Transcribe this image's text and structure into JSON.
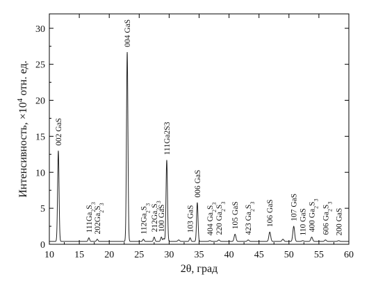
{
  "chart_data": {
    "type": "line",
    "title": "",
    "xlabel": "2θ, град",
    "ylabel": "Интенсивность, ×10⁴ отн. ед.",
    "ylabel_parts": {
      "before": "Интенсивность, ×10",
      "exp": "4",
      "after": " отн. ед."
    },
    "xlim": [
      10,
      60
    ],
    "ylim": [
      0,
      32
    ],
    "xticks": [
      10,
      15,
      20,
      25,
      30,
      35,
      40,
      45,
      50,
      55,
      60
    ],
    "yticks": [
      0,
      5,
      10,
      15,
      20,
      25,
      30
    ],
    "grid": false,
    "legend": "none",
    "colors": {
      "line": "#222222",
      "axes": "#000000"
    },
    "baseline": 0.4,
    "peaks": [
      {
        "x": 11.5,
        "y": 13.0,
        "w": 0.12
      },
      {
        "x": 16.6,
        "y": 0.9,
        "w": 0.12
      },
      {
        "x": 18.0,
        "y": 0.7,
        "w": 0.12
      },
      {
        "x": 23.0,
        "y": 26.7,
        "w": 0.12
      },
      {
        "x": 25.7,
        "y": 0.7,
        "w": 0.12
      },
      {
        "x": 27.5,
        "y": 1.0,
        "w": 0.12
      },
      {
        "x": 28.7,
        "y": 1.0,
        "w": 0.12
      },
      {
        "x": 29.1,
        "y": 0.8,
        "w": 0.12
      },
      {
        "x": 29.6,
        "y": 11.7,
        "w": 0.12
      },
      {
        "x": 31.6,
        "y": 0.6,
        "w": 0.15
      },
      {
        "x": 33.5,
        "y": 0.9,
        "w": 0.12
      },
      {
        "x": 34.7,
        "y": 5.8,
        "w": 0.12
      },
      {
        "x": 36.8,
        "y": 0.5,
        "w": 0.15
      },
      {
        "x": 38.3,
        "y": 0.6,
        "w": 0.15
      },
      {
        "x": 41.0,
        "y": 1.4,
        "w": 0.15
      },
      {
        "x": 43.2,
        "y": 0.6,
        "w": 0.15
      },
      {
        "x": 46.8,
        "y": 1.7,
        "w": 0.15
      },
      {
        "x": 49.0,
        "y": 0.7,
        "w": 0.15
      },
      {
        "x": 50.8,
        "y": 2.5,
        "w": 0.15
      },
      {
        "x": 52.3,
        "y": 0.5,
        "w": 0.15
      },
      {
        "x": 53.8,
        "y": 1.0,
        "w": 0.15
      },
      {
        "x": 56.1,
        "y": 0.6,
        "w": 0.15
      },
      {
        "x": 58.3,
        "y": 0.5,
        "w": 0.15
      }
    ],
    "annotations": [
      {
        "x": 11.5,
        "y": 13.7,
        "parts": [
          [
            "002 GaS",
            0
          ]
        ]
      },
      {
        "x": 16.6,
        "y": 1.6,
        "parts": [
          [
            "111Ga",
            0
          ],
          [
            "2",
            1
          ],
          [
            "S",
            0
          ],
          [
            "3",
            1
          ]
        ]
      },
      {
        "x": 18.0,
        "y": 1.4,
        "parts": [
          [
            "202Ga",
            0
          ],
          [
            "2",
            1
          ],
          [
            "S",
            0
          ],
          [
            "3",
            1
          ]
        ]
      },
      {
        "x": 23.0,
        "y": 27.4,
        "parts": [
          [
            "004 GaS",
            0
          ]
        ]
      },
      {
        "x": 25.7,
        "y": 1.4,
        "parts": [
          [
            "112Ga",
            0
          ],
          [
            "2",
            1
          ],
          [
            "S",
            0
          ],
          [
            "3",
            1
          ]
        ]
      },
      {
        "x": 27.5,
        "y": 1.7,
        "parts": [
          [
            "212Ga",
            0
          ],
          [
            "2",
            1
          ],
          [
            "S",
            0
          ],
          [
            "3",
            1
          ]
        ]
      },
      {
        "x": 28.7,
        "y": 1.7,
        "parts": [
          [
            "100 GaS",
            0
          ]
        ]
      },
      {
        "x": 29.6,
        "y": 12.4,
        "parts": [
          [
            "111Ga2S3",
            0
          ]
        ]
      },
      {
        "x": 33.5,
        "y": 1.6,
        "parts": [
          [
            "103 GaS",
            0
          ]
        ]
      },
      {
        "x": 34.7,
        "y": 6.5,
        "parts": [
          [
            "006 GaS",
            0
          ]
        ]
      },
      {
        "x": 36.8,
        "y": 1.2,
        "parts": [
          [
            "404 Ga",
            0
          ],
          [
            "2",
            1
          ],
          [
            "S",
            0
          ],
          [
            "3",
            1
          ]
        ]
      },
      {
        "x": 38.3,
        "y": 1.3,
        "parts": [
          [
            "220 Ga",
            0
          ],
          [
            "2",
            1
          ],
          [
            "S",
            0
          ],
          [
            "3",
            1
          ]
        ]
      },
      {
        "x": 41.0,
        "y": 2.1,
        "parts": [
          [
            "105 GaS",
            0
          ]
        ]
      },
      {
        "x": 43.2,
        "y": 1.3,
        "parts": [
          [
            "423 Ga",
            0
          ],
          [
            "2",
            1
          ],
          [
            "S",
            0
          ],
          [
            "3",
            1
          ]
        ]
      },
      {
        "x": 46.8,
        "y": 2.4,
        "parts": [
          [
            "106 GaS",
            0
          ]
        ]
      },
      {
        "x": 50.8,
        "y": 3.2,
        "parts": [
          [
            "107 GaS",
            0
          ]
        ]
      },
      {
        "x": 52.3,
        "y": 1.2,
        "parts": [
          [
            "110 GaS",
            0
          ]
        ]
      },
      {
        "x": 53.8,
        "y": 1.7,
        "parts": [
          [
            "400 Ga",
            0
          ],
          [
            "2",
            1
          ],
          [
            "S",
            0
          ],
          [
            "3",
            1
          ]
        ]
      },
      {
        "x": 56.1,
        "y": 1.3,
        "parts": [
          [
            "606 Ga",
            0
          ],
          [
            "2",
            1
          ],
          [
            "S",
            0
          ],
          [
            "3",
            1
          ]
        ]
      },
      {
        "x": 58.3,
        "y": 1.2,
        "parts": [
          [
            "200 GaS",
            0
          ]
        ]
      }
    ]
  }
}
